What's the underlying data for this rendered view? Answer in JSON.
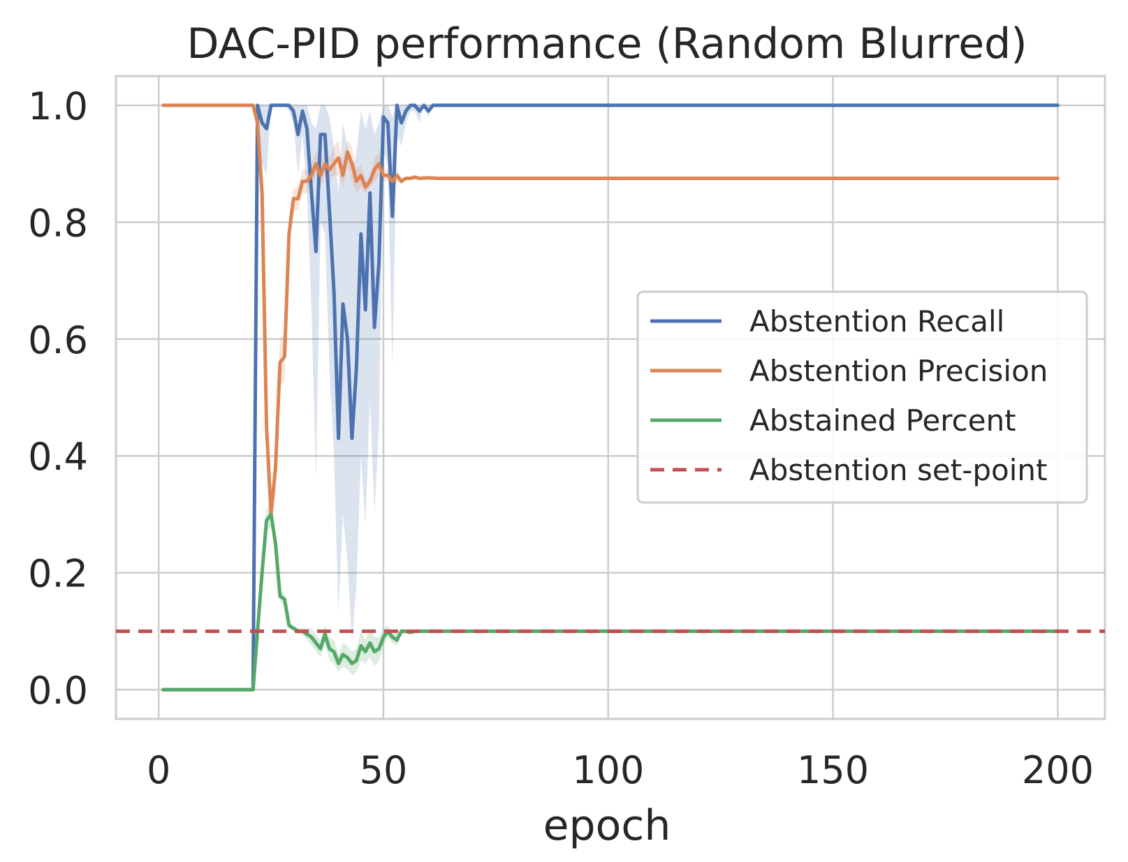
{
  "chart_data": {
    "type": "line",
    "title": "DAC-PID performance (Random Blurred)",
    "xlabel": "epoch",
    "ylabel": "",
    "xlim": [
      -9.5,
      210.5
    ],
    "ylim": [
      -0.05,
      1.05
    ],
    "xticks": [
      0,
      50,
      100,
      150,
      200
    ],
    "xtick_labels": [
      "0",
      "50",
      "100",
      "150",
      "200"
    ],
    "yticks": [
      0.0,
      0.2,
      0.4,
      0.6,
      0.8,
      1.0
    ],
    "ytick_labels": [
      "0.0",
      "0.2",
      "0.4",
      "0.6",
      "0.8",
      "1.0"
    ],
    "grid": true,
    "legend_position": "center-right",
    "series": [
      {
        "name": "Abstention Recall",
        "color": "#4c72b0",
        "style": "solid",
        "band_opacity": 0.2,
        "x": [
          1,
          21,
          22,
          23,
          24,
          25,
          26,
          27,
          28,
          29,
          30,
          31,
          32,
          33,
          34,
          35,
          36,
          37,
          38,
          39,
          40,
          41,
          42,
          43,
          44,
          45,
          46,
          47,
          48,
          49,
          50,
          51,
          52,
          53,
          54,
          55,
          56,
          57,
          58,
          59,
          60,
          61,
          62,
          80,
          100,
          150,
          200
        ],
        "y": [
          0,
          0,
          1.0,
          0.97,
          0.96,
          1.0,
          1.0,
          1.0,
          1.0,
          1.0,
          0.99,
          0.95,
          0.99,
          0.96,
          0.85,
          0.75,
          0.95,
          0.95,
          0.82,
          0.68,
          0.43,
          0.66,
          0.6,
          0.43,
          0.55,
          0.78,
          0.65,
          0.85,
          0.62,
          0.73,
          0.98,
          0.97,
          0.81,
          1.0,
          0.97,
          0.99,
          1.0,
          1.0,
          0.99,
          1.0,
          0.99,
          1.0,
          1.0,
          1.0,
          1.0,
          1.0,
          1.0
        ],
        "lower": [
          0,
          0,
          1.0,
          0.9,
          0.88,
          1.0,
          1.0,
          1.0,
          1.0,
          0.99,
          0.97,
          0.88,
          0.95,
          0.85,
          0.65,
          0.36,
          0.8,
          0.78,
          0.55,
          0.4,
          0.13,
          0.3,
          0.22,
          0.08,
          0.18,
          0.4,
          0.28,
          0.5,
          0.3,
          0.45,
          0.92,
          0.9,
          0.55,
          0.95,
          0.93,
          0.97,
          0.99,
          0.99,
          0.97,
          1.0,
          0.98,
          1.0,
          1.0,
          1.0,
          1.0,
          1.0,
          1.0
        ],
        "upper": [
          0,
          0,
          1.0,
          1.0,
          1.0,
          1.0,
          1.0,
          1.0,
          1.0,
          1.0,
          1.0,
          1.0,
          1.0,
          1.0,
          0.97,
          0.96,
          1.0,
          1.0,
          0.98,
          0.93,
          0.85,
          0.97,
          0.93,
          0.88,
          0.92,
          0.99,
          0.96,
          0.99,
          0.95,
          0.97,
          1.0,
          1.0,
          0.98,
          1.0,
          1.0,
          1.0,
          1.0,
          1.0,
          1.0,
          1.0,
          1.0,
          1.0,
          1.0,
          1.0,
          1.0,
          1.0,
          1.0
        ]
      },
      {
        "name": "Abstention Precision",
        "color": "#dd8452",
        "style": "solid",
        "band_opacity": 0.2,
        "x": [
          1,
          21,
          22,
          23,
          24,
          25,
          26,
          27,
          28,
          29,
          30,
          31,
          32,
          33,
          34,
          35,
          36,
          37,
          38,
          39,
          40,
          41,
          42,
          43,
          44,
          45,
          46,
          47,
          48,
          49,
          50,
          51,
          52,
          53,
          54,
          55,
          56,
          57,
          58,
          60,
          62,
          80,
          100,
          150,
          200
        ],
        "y": [
          1.0,
          1.0,
          0.97,
          0.85,
          0.45,
          0.3,
          0.38,
          0.56,
          0.57,
          0.78,
          0.84,
          0.84,
          0.87,
          0.87,
          0.88,
          0.9,
          0.88,
          0.9,
          0.89,
          0.9,
          0.91,
          0.88,
          0.92,
          0.9,
          0.87,
          0.88,
          0.86,
          0.87,
          0.89,
          0.9,
          0.88,
          0.88,
          0.87,
          0.88,
          0.87,
          0.875,
          0.875,
          0.877,
          0.875,
          0.876,
          0.875,
          0.875,
          0.875,
          0.875,
          0.875
        ],
        "lower": [
          1.0,
          1.0,
          0.95,
          0.8,
          0.4,
          0.28,
          0.34,
          0.52,
          0.53,
          0.75,
          0.82,
          0.82,
          0.85,
          0.85,
          0.86,
          0.88,
          0.86,
          0.88,
          0.87,
          0.88,
          0.88,
          0.86,
          0.9,
          0.87,
          0.85,
          0.86,
          0.85,
          0.86,
          0.87,
          0.88,
          0.87,
          0.87,
          0.86,
          0.87,
          0.865,
          0.872,
          0.872,
          0.874,
          0.873,
          0.874,
          0.874,
          0.875,
          0.875,
          0.875,
          0.875
        ],
        "upper": [
          1.0,
          1.0,
          0.99,
          0.9,
          0.5,
          0.33,
          0.42,
          0.6,
          0.61,
          0.81,
          0.86,
          0.86,
          0.89,
          0.89,
          0.9,
          0.92,
          0.9,
          0.92,
          0.91,
          0.93,
          0.94,
          0.9,
          0.94,
          0.93,
          0.89,
          0.9,
          0.87,
          0.88,
          0.91,
          0.92,
          0.89,
          0.89,
          0.88,
          0.89,
          0.875,
          0.878,
          0.878,
          0.88,
          0.877,
          0.878,
          0.876,
          0.875,
          0.875,
          0.875,
          0.875
        ]
      },
      {
        "name": "Abstained Percent",
        "color": "#55a868",
        "style": "solid",
        "band_opacity": 0.2,
        "x": [
          1,
          21,
          22,
          23,
          24,
          25,
          26,
          27,
          28,
          29,
          30,
          31,
          32,
          33,
          34,
          35,
          36,
          37,
          38,
          39,
          40,
          41,
          42,
          43,
          44,
          45,
          46,
          47,
          48,
          49,
          50,
          51,
          52,
          53,
          54,
          55,
          56,
          57,
          58,
          60,
          62,
          80,
          100,
          150,
          200
        ],
        "y": [
          0,
          0,
          0.1,
          0.2,
          0.29,
          0.3,
          0.25,
          0.16,
          0.155,
          0.11,
          0.105,
          0.1,
          0.1,
          0.095,
          0.09,
          0.08,
          0.07,
          0.095,
          0.07,
          0.065,
          0.045,
          0.06,
          0.055,
          0.045,
          0.05,
          0.075,
          0.065,
          0.08,
          0.065,
          0.07,
          0.09,
          0.1,
          0.09,
          0.085,
          0.1,
          0.1,
          0.098,
          0.1,
          0.1,
          0.1,
          0.1,
          0.1,
          0.1,
          0.1,
          0.1
        ],
        "lower": [
          0,
          0,
          0.1,
          0.18,
          0.27,
          0.28,
          0.23,
          0.15,
          0.145,
          0.105,
          0.1,
          0.095,
          0.095,
          0.085,
          0.075,
          0.065,
          0.055,
          0.08,
          0.05,
          0.045,
          0.03,
          0.04,
          0.035,
          0.025,
          0.03,
          0.05,
          0.045,
          0.055,
          0.04,
          0.05,
          0.075,
          0.09,
          0.08,
          0.075,
          0.095,
          0.097,
          0.096,
          0.099,
          0.099,
          0.1,
          0.1,
          0.1,
          0.1,
          0.1,
          0.1
        ],
        "upper": [
          0,
          0,
          0.1,
          0.22,
          0.31,
          0.32,
          0.27,
          0.17,
          0.165,
          0.115,
          0.11,
          0.105,
          0.105,
          0.105,
          0.105,
          0.095,
          0.085,
          0.11,
          0.09,
          0.085,
          0.06,
          0.08,
          0.075,
          0.065,
          0.07,
          0.1,
          0.085,
          0.105,
          0.09,
          0.09,
          0.105,
          0.11,
          0.1,
          0.095,
          0.105,
          0.103,
          0.1,
          0.101,
          0.101,
          0.1,
          0.1,
          0.1,
          0.1,
          0.1,
          0.1
        ]
      },
      {
        "name": "Abstention set-point",
        "color": "#c44e52",
        "style": "dashed",
        "x": [
          -9.5,
          210.5
        ],
        "y": [
          0.1,
          0.1
        ]
      }
    ]
  }
}
